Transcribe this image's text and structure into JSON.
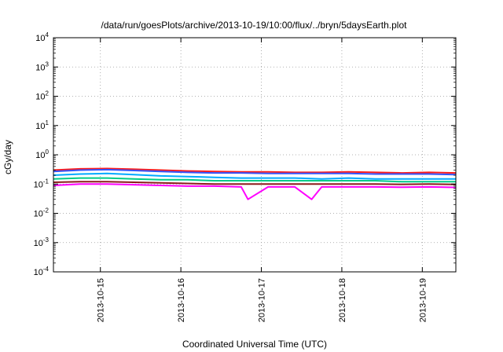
{
  "chart_data": {
    "type": "line",
    "title": "/data/run/goesPlots/archive/2013-10-19/10:00/flux/../bryn/5daysEarth.plot",
    "xlabel": "Coordinated Universal Time (UTC)",
    "ylabel": "cGy/day",
    "yscale": "log",
    "ylim": [
      0.0001,
      10000
    ],
    "y_ticks": [
      {
        "base": "10",
        "exp": "-4",
        "value": 0.0001
      },
      {
        "base": "10",
        "exp": "-3",
        "value": 0.001
      },
      {
        "base": "10",
        "exp": "-2",
        "value": 0.01
      },
      {
        "base": "10",
        "exp": "-1",
        "value": 0.1
      },
      {
        "base": "10",
        "exp": "0",
        "value": 1
      },
      {
        "base": "10",
        "exp": "1",
        "value": 10
      },
      {
        "base": "10",
        "exp": "2",
        "value": 100
      },
      {
        "base": "10",
        "exp": "3",
        "value": 1000
      },
      {
        "base": "10",
        "exp": "4",
        "value": 10000
      }
    ],
    "xlim": [
      "2013-10-14 10:00",
      "2013-10-19 10:00"
    ],
    "x_ticks": [
      "2013-10-15",
      "2013-10-16",
      "2013-10-17",
      "2013-10-18",
      "2013-10-19"
    ],
    "grid": true,
    "series": [
      {
        "color": "#ff1a1a",
        "x": [
          "2013-10-14 10:00",
          "2013-10-14 18:00",
          "2013-10-15 02:00",
          "2013-10-15 10:00",
          "2013-10-15 18:00",
          "2013-10-16 02:00",
          "2013-10-16 10:00",
          "2013-10-16 18:00",
          "2013-10-17 02:00",
          "2013-10-17 10:00",
          "2013-10-17 18:00",
          "2013-10-18 02:00",
          "2013-10-18 10:00",
          "2013-10-18 18:00",
          "2013-10-19 02:00",
          "2013-10-19 10:00"
        ],
        "values": [
          0.3,
          0.33,
          0.34,
          0.32,
          0.3,
          0.28,
          0.27,
          0.26,
          0.26,
          0.25,
          0.25,
          0.26,
          0.25,
          0.24,
          0.25,
          0.24
        ]
      },
      {
        "color": "#3355ff",
        "x": [
          "2013-10-14 10:00",
          "2013-10-14 18:00",
          "2013-10-15 02:00",
          "2013-10-15 10:00",
          "2013-10-15 18:00",
          "2013-10-16 02:00",
          "2013-10-16 10:00",
          "2013-10-16 18:00",
          "2013-10-17 02:00",
          "2013-10-17 10:00",
          "2013-10-17 18:00",
          "2013-10-18 02:00",
          "2013-10-18 10:00",
          "2013-10-18 18:00",
          "2013-10-19 02:00",
          "2013-10-19 10:00"
        ],
        "values": [
          0.27,
          0.3,
          0.31,
          0.29,
          0.27,
          0.25,
          0.24,
          0.24,
          0.23,
          0.23,
          0.23,
          0.23,
          0.22,
          0.22,
          0.22,
          0.21
        ]
      },
      {
        "color": "#00aaff",
        "x": [
          "2013-10-14 10:00",
          "2013-10-14 18:00",
          "2013-10-15 02:00",
          "2013-10-15 10:00",
          "2013-10-15 18:00",
          "2013-10-16 02:00",
          "2013-10-16 10:00",
          "2013-10-16 18:00",
          "2013-10-17 02:00",
          "2013-10-17 10:00",
          "2013-10-17 18:00",
          "2013-10-18 02:00",
          "2013-10-18 10:00",
          "2013-10-18 18:00",
          "2013-10-19 02:00",
          "2013-10-19 10:00"
        ],
        "values": [
          0.2,
          0.22,
          0.23,
          0.21,
          0.19,
          0.18,
          0.17,
          0.16,
          0.16,
          0.16,
          0.15,
          0.16,
          0.15,
          0.15,
          0.15,
          0.15
        ]
      },
      {
        "color": "#00cc88",
        "x": [
          "2013-10-14 10:00",
          "2013-10-14 18:00",
          "2013-10-15 02:00",
          "2013-10-15 10:00",
          "2013-10-15 18:00",
          "2013-10-16 02:00",
          "2013-10-16 10:00",
          "2013-10-16 18:00",
          "2013-10-17 02:00",
          "2013-10-17 10:00",
          "2013-10-17 18:00",
          "2013-10-18 02:00",
          "2013-10-18 10:00",
          "2013-10-18 18:00",
          "2013-10-19 02:00",
          "2013-10-19 10:00"
        ],
        "values": [
          0.15,
          0.16,
          0.16,
          0.15,
          0.14,
          0.14,
          0.13,
          0.13,
          0.13,
          0.13,
          0.13,
          0.13,
          0.13,
          0.12,
          0.12,
          0.12
        ]
      },
      {
        "color": "#8b1a1a",
        "x": [
          "2013-10-14 10:00",
          "2013-10-14 18:00",
          "2013-10-15 02:00",
          "2013-10-15 10:00",
          "2013-10-15 18:00",
          "2013-10-16 02:00",
          "2013-10-16 10:00",
          "2013-10-16 18:00",
          "2013-10-17 02:00",
          "2013-10-17 10:00",
          "2013-10-17 18:00",
          "2013-10-18 02:00",
          "2013-10-18 10:00",
          "2013-10-18 18:00",
          "2013-10-19 02:00",
          "2013-10-19 10:00"
        ],
        "values": [
          0.115,
          0.12,
          0.12,
          0.115,
          0.11,
          0.105,
          0.1,
          0.1,
          0.1,
          0.1,
          0.1,
          0.1,
          0.1,
          0.098,
          0.1,
          0.097
        ]
      },
      {
        "color": "#ff00ff",
        "x": [
          "2013-10-14 10:00",
          "2013-10-14 18:00",
          "2013-10-15 02:00",
          "2013-10-15 10:00",
          "2013-10-15 18:00",
          "2013-10-16 02:00",
          "2013-10-16 10:00",
          "2013-10-16 18:00",
          "2013-10-16 20:00",
          "2013-10-17 02:00",
          "2013-10-17 10:00",
          "2013-10-17 15:00",
          "2013-10-17 18:00",
          "2013-10-18 02:00",
          "2013-10-18 10:00",
          "2013-10-18 18:00",
          "2013-10-19 02:00",
          "2013-10-19 10:00"
        ],
        "values": [
          0.09,
          0.1,
          0.1,
          0.095,
          0.09,
          0.085,
          0.085,
          0.08,
          0.03,
          0.08,
          0.08,
          0.03,
          0.08,
          0.08,
          0.08,
          0.078,
          0.08,
          0.077
        ]
      }
    ]
  }
}
